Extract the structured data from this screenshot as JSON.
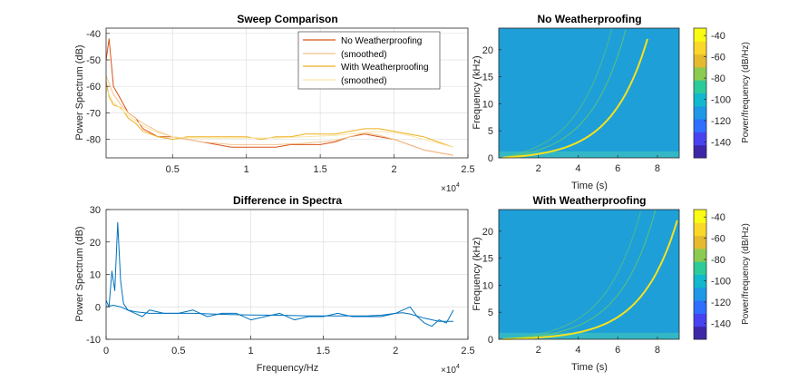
{
  "chart_data": [
    {
      "type": "line",
      "title": "Sweep Comparison",
      "xlabel": "",
      "ylabel": "Power Spectrum (dB)",
      "xlim": [
        500,
        25000
      ],
      "ylim": [
        -87,
        -38
      ],
      "x_ticks": [
        5000,
        10000,
        15000,
        20000,
        25000
      ],
      "x_tick_labels": [
        "0.5",
        "1",
        "1.5",
        "2",
        "2.5"
      ],
      "x_exponent_label": "×10",
      "x_exponent": "4",
      "y_ticks": [
        -80,
        -70,
        -60,
        -50,
        -40
      ],
      "y_tick_labels": [
        "-80",
        "-70",
        "-60",
        "-50",
        "-40"
      ],
      "grid": true,
      "legend_position": "top-right",
      "series": [
        {
          "name": "No Weatherproofing",
          "color": "#D95319",
          "x": [
            500,
            700,
            1000,
            1500,
            2000,
            2500,
            3000,
            4000,
            5000,
            6000,
            7000,
            8000,
            9000,
            10000,
            11000,
            12000,
            13000,
            14000,
            15000,
            16000,
            17000,
            18000,
            19000,
            20000,
            21000,
            22000,
            23000,
            24000
          ],
          "y": [
            -50,
            -42,
            -60,
            -65,
            -70,
            -72,
            -76,
            -79,
            -79,
            -80,
            -81,
            -82,
            -83,
            -83,
            -83,
            -83,
            -82,
            -82,
            -82,
            -81,
            -79,
            -78,
            -79,
            -80,
            -82,
            -84,
            -85,
            -86
          ]
        },
        {
          "name": "(smoothed)",
          "color": "#F4C28C",
          "x": [
            500,
            1000,
            1500,
            2000,
            3000,
            4000,
            5000,
            6000,
            7000,
            8000,
            9000,
            10000,
            12000,
            14000,
            16000,
            17000,
            18000,
            19000,
            20000,
            21000,
            22000,
            23000,
            24000
          ],
          "y": [
            -56,
            -63,
            -67,
            -70,
            -74,
            -77,
            -79,
            -80,
            -81,
            -81.5,
            -82,
            -82,
            -82,
            -81.5,
            -80.5,
            -79,
            -77.5,
            -78.5,
            -80,
            -82,
            -84,
            -85,
            -86
          ]
        },
        {
          "name": "With Weatherproofing",
          "color": "#EDB120",
          "x": [
            500,
            700,
            1000,
            1500,
            2000,
            2500,
            3000,
            4000,
            5000,
            6000,
            7000,
            8000,
            9000,
            10000,
            11000,
            12000,
            13000,
            14000,
            15000,
            16000,
            17000,
            18000,
            19000,
            20000,
            21000,
            22000,
            23000,
            24000
          ],
          "y": [
            -58,
            -64,
            -67,
            -68,
            -72,
            -74,
            -77,
            -79,
            -80,
            -79,
            -79,
            -79,
            -79,
            -79,
            -80,
            -79,
            -79,
            -78,
            -78,
            -78,
            -77,
            -76,
            -76,
            -77,
            -78,
            -79,
            -81,
            -83
          ]
        },
        {
          "name": "(smoothed)",
          "color": "#FBE5A6",
          "x": [
            500,
            1000,
            2000,
            3000,
            4000,
            5000,
            6000,
            8000,
            10000,
            12000,
            14000,
            16000,
            18000,
            19000,
            20000,
            21000,
            22000,
            23000,
            24000
          ],
          "y": [
            -61,
            -66,
            -71,
            -75,
            -77.5,
            -79,
            -79.5,
            -79.5,
            -79.5,
            -79.5,
            -79,
            -78.5,
            -77.5,
            -77,
            -77.5,
            -78.5,
            -80,
            -81.5,
            -83
          ]
        }
      ]
    },
    {
      "type": "line",
      "title": "Difference in Spectra",
      "xlabel": "Frequency/Hz",
      "ylabel": "Power Spectrum (dB)",
      "xlim": [
        0,
        25000
      ],
      "ylim": [
        -10,
        30
      ],
      "x_ticks": [
        0,
        5000,
        10000,
        15000,
        20000,
        25000
      ],
      "x_tick_labels": [
        "0",
        "0.5",
        "1",
        "1.5",
        "2",
        "2.5"
      ],
      "x_exponent_label": "×10",
      "x_exponent": "4",
      "y_ticks": [
        -10,
        0,
        10,
        20,
        30
      ],
      "y_tick_labels": [
        "-10",
        "0",
        "10",
        "20",
        "30"
      ],
      "grid": true,
      "series": [
        {
          "color": "#0072BD",
          "x": [
            0,
            200,
            400,
            600,
            800,
            1000,
            1200,
            1500,
            2000,
            2500,
            3000,
            4000,
            5000,
            6000,
            7000,
            8000,
            9000,
            10000,
            11000,
            12000,
            13000,
            14000,
            15000,
            16000,
            17000,
            18000,
            19000,
            20000,
            20500,
            21000,
            21500,
            22000,
            22500,
            23000,
            23500,
            24000
          ],
          "y": [
            2,
            0,
            11,
            5,
            26,
            8,
            1,
            -1,
            -2,
            -3,
            -1,
            -2,
            -2,
            -1,
            -3,
            -2,
            -2,
            -4,
            -3,
            -2,
            -4,
            -3,
            -3,
            -2,
            -3,
            -3,
            -3,
            -2,
            -1,
            0,
            -3,
            -5,
            -6,
            -4,
            -5,
            -1
          ]
        },
        {
          "color": "#0072BD",
          "x": [
            0,
            500,
            1000,
            1500,
            2000,
            3000,
            4000,
            6000,
            8000,
            10000,
            12000,
            14000,
            16000,
            18000,
            19000,
            20000,
            20500,
            21000,
            22000,
            23000,
            24000
          ],
          "y": [
            0,
            0.5,
            0,
            -1,
            -1.5,
            -2,
            -2,
            -2,
            -2.3,
            -2.5,
            -2.6,
            -2.8,
            -2.8,
            -2.8,
            -2.6,
            -2,
            -1.8,
            -2.2,
            -3.5,
            -4.5,
            -4.5
          ]
        }
      ]
    },
    {
      "type": "heatmap",
      "title": "No Weatherproofing",
      "xlabel": "Time (s)",
      "ylabel": "Frequency (kHz)",
      "xlim": [
        0,
        9.1
      ],
      "ylim": [
        0,
        24
      ],
      "x_ticks": [
        2,
        4,
        6,
        8
      ],
      "x_tick_labels": [
        "2",
        "4",
        "6",
        "8"
      ],
      "y_ticks": [
        0,
        5,
        10,
        15,
        20
      ],
      "y_tick_labels": [
        "0",
        "5",
        "10",
        "15",
        "20"
      ],
      "sweep_end_time": 7.5,
      "sweep_end_freq": 22,
      "colorbar": {
        "label": "Power/frequency (dB/Hz)",
        "ticks": [
          -140,
          -120,
          -100,
          -80,
          -60,
          -40
        ],
        "tick_labels": [
          "-140",
          "-120",
          "-100",
          "-80",
          "-60",
          "-40"
        ],
        "range": [
          -155,
          -33
        ]
      }
    },
    {
      "type": "heatmap",
      "title": "With Weatherproofing",
      "xlabel": "Time (s)",
      "ylabel": "Frequency (kHz)",
      "xlim": [
        0,
        9.1
      ],
      "ylim": [
        0,
        24
      ],
      "x_ticks": [
        2,
        4,
        6,
        8
      ],
      "x_tick_labels": [
        "2",
        "4",
        "6",
        "8"
      ],
      "y_ticks": [
        0,
        5,
        10,
        15,
        20
      ],
      "y_tick_labels": [
        "0",
        "5",
        "10",
        "15",
        "20"
      ],
      "sweep_end_time": 9,
      "sweep_end_freq": 22,
      "colorbar": {
        "label": "Power/frequency (dB/Hz)",
        "ticks": [
          -140,
          -120,
          -100,
          -80,
          -60,
          -40
        ],
        "tick_labels": [
          "-140",
          "-120",
          "-100",
          "-80",
          "-60",
          "-40"
        ],
        "range": [
          -155,
          -33
        ]
      }
    }
  ],
  "colors": {
    "axis": "#262626",
    "grid": "#DFDFDF",
    "spec_bg": "#1E9FD8",
    "spec_bg_light": "#33B7C6",
    "sweep": "#F7E11E",
    "harmonic": "#6CCB62",
    "colormap": [
      "#3E26A8",
      "#4743F1",
      "#2F6EFF",
      "#1E97E6",
      "#12B8CD",
      "#2DCA9A",
      "#8BCB51",
      "#E5BA2E",
      "#FAD82A",
      "#F9FB14"
    ]
  }
}
